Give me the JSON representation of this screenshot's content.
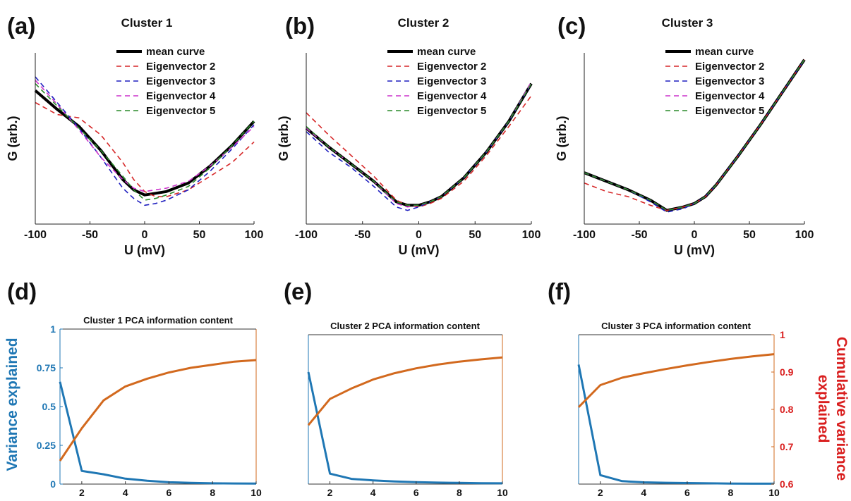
{
  "colors": {
    "mean": "#000000",
    "eig2": "#d62728",
    "eig3": "#1f1fbf",
    "eig4": "#cc33cc",
    "eig5": "#2a8a2a",
    "variance": "#1f77b4",
    "cumulative": "#d2691e",
    "cumulative_axis": "#d91e1e"
  },
  "chart_data": [
    {
      "type": "line",
      "panel": "(a)",
      "title": "Cluster 1",
      "xlabel": "U (mV)",
      "ylabel": "G (arb.)",
      "xlim": [
        -100,
        100
      ],
      "ylim": [
        0,
        1
      ],
      "xticks": [
        -100,
        -50,
        0,
        50,
        100
      ],
      "legend_position": "top-center",
      "x": [
        -100,
        -80,
        -60,
        -40,
        -20,
        -10,
        0,
        10,
        20,
        40,
        60,
        80,
        100
      ],
      "series": [
        {
          "name": "mean curve",
          "style": "solid",
          "values": [
            0.78,
            0.67,
            0.57,
            0.43,
            0.26,
            0.2,
            0.17,
            0.18,
            0.19,
            0.24,
            0.34,
            0.46,
            0.6
          ]
        },
        {
          "name": "Eigenvector 2",
          "style": "dashed",
          "values": [
            0.71,
            0.64,
            0.62,
            0.52,
            0.36,
            0.26,
            0.19,
            0.16,
            0.16,
            0.2,
            0.28,
            0.36,
            0.48
          ]
        },
        {
          "name": "Eigenvector 3",
          "style": "dashed",
          "values": [
            0.86,
            0.71,
            0.56,
            0.39,
            0.21,
            0.15,
            0.11,
            0.12,
            0.14,
            0.2,
            0.31,
            0.44,
            0.58
          ]
        },
        {
          "name": "Eigenvector 4",
          "style": "dashed",
          "values": [
            0.84,
            0.7,
            0.55,
            0.39,
            0.26,
            0.21,
            0.19,
            0.2,
            0.21,
            0.25,
            0.34,
            0.45,
            0.57
          ]
        },
        {
          "name": "Eigenvector 5",
          "style": "dashed",
          "values": [
            0.82,
            0.69,
            0.56,
            0.43,
            0.28,
            0.2,
            0.14,
            0.15,
            0.17,
            0.22,
            0.33,
            0.46,
            0.6
          ]
        }
      ]
    },
    {
      "type": "line",
      "panel": "(b)",
      "title": "Cluster 2",
      "xlabel": "U (mV)",
      "ylabel": "G (arb.)",
      "xlim": [
        -100,
        100
      ],
      "ylim": [
        0,
        1
      ],
      "xticks": [
        -100,
        -50,
        0,
        50,
        100
      ],
      "legend_position": "top-center",
      "x": [
        -100,
        -80,
        -60,
        -40,
        -20,
        -10,
        0,
        10,
        20,
        40,
        60,
        80,
        100
      ],
      "series": [
        {
          "name": "mean curve",
          "style": "solid",
          "values": [
            0.56,
            0.45,
            0.35,
            0.25,
            0.13,
            0.11,
            0.11,
            0.13,
            0.16,
            0.27,
            0.42,
            0.6,
            0.82
          ]
        },
        {
          "name": "Eigenvector 2",
          "style": "dashed",
          "values": [
            0.65,
            0.52,
            0.4,
            0.28,
            0.14,
            0.11,
            0.1,
            0.12,
            0.15,
            0.25,
            0.4,
            0.57,
            0.75
          ]
        },
        {
          "name": "Eigenvector 3",
          "style": "dashed",
          "values": [
            0.54,
            0.42,
            0.33,
            0.22,
            0.1,
            0.08,
            0.1,
            0.13,
            0.16,
            0.27,
            0.42,
            0.6,
            0.82
          ]
        },
        {
          "name": "Eigenvector 4",
          "style": "dashed",
          "values": [
            0.56,
            0.45,
            0.35,
            0.25,
            0.12,
            0.1,
            0.11,
            0.13,
            0.16,
            0.27,
            0.42,
            0.6,
            0.83
          ]
        },
        {
          "name": "Eigenvector 5",
          "style": "dashed",
          "values": [
            0.57,
            0.45,
            0.35,
            0.25,
            0.13,
            0.11,
            0.11,
            0.13,
            0.16,
            0.27,
            0.42,
            0.6,
            0.82
          ]
        }
      ]
    },
    {
      "type": "line",
      "panel": "(c)",
      "title": "Cluster 3",
      "xlabel": "U (mV)",
      "ylabel": "G (arb.)",
      "xlim": [
        -100,
        100
      ],
      "ylim": [
        0,
        1
      ],
      "xticks": [
        -100,
        -50,
        0,
        50,
        100
      ],
      "legend_position": "top-center",
      "x": [
        -100,
        -80,
        -60,
        -40,
        -25,
        -10,
        0,
        10,
        20,
        40,
        60,
        80,
        100
      ],
      "series": [
        {
          "name": "mean curve",
          "style": "solid",
          "values": [
            0.3,
            0.25,
            0.2,
            0.14,
            0.08,
            0.1,
            0.12,
            0.16,
            0.23,
            0.4,
            0.58,
            0.77,
            0.96
          ]
        },
        {
          "name": "Eigenvector 2",
          "style": "dashed",
          "values": [
            0.24,
            0.19,
            0.16,
            0.11,
            0.08,
            0.1,
            0.12,
            0.16,
            0.23,
            0.4,
            0.58,
            0.77,
            0.96
          ]
        },
        {
          "name": "Eigenvector 3",
          "style": "dashed",
          "values": [
            0.3,
            0.25,
            0.2,
            0.13,
            0.07,
            0.09,
            0.12,
            0.16,
            0.23,
            0.4,
            0.58,
            0.77,
            0.96
          ]
        },
        {
          "name": "Eigenvector 4",
          "style": "dashed",
          "values": [
            0.3,
            0.25,
            0.2,
            0.14,
            0.08,
            0.1,
            0.12,
            0.16,
            0.23,
            0.4,
            0.58,
            0.77,
            0.96
          ]
        },
        {
          "name": "Eigenvector 5",
          "style": "dashed",
          "values": [
            0.3,
            0.25,
            0.2,
            0.14,
            0.08,
            0.1,
            0.12,
            0.16,
            0.23,
            0.4,
            0.58,
            0.77,
            0.96
          ]
        }
      ]
    },
    {
      "type": "line",
      "panel": "(d)",
      "title": "Cluster 1 PCA information content",
      "xlabel": "",
      "ylabel": "Variance explained",
      "xlim": [
        1,
        10
      ],
      "xticks": [
        2,
        4,
        6,
        8,
        10
      ],
      "ylim": [
        0,
        1
      ],
      "yticks": [
        "0",
        "0.25",
        "0.5",
        "0.75",
        "1"
      ],
      "y2lim": [
        0,
        1
      ],
      "x": [
        1,
        2,
        3,
        4,
        5,
        6,
        7,
        8,
        9,
        10
      ],
      "series": [
        {
          "role": "variance",
          "values": [
            0.66,
            0.085,
            0.063,
            0.035,
            0.022,
            0.012,
            0.008,
            0.005,
            0.004,
            0.003
          ]
        },
        {
          "role": "cumulative",
          "values": [
            0.15,
            0.36,
            0.54,
            0.63,
            0.68,
            0.72,
            0.75,
            0.77,
            0.79,
            0.8
          ]
        }
      ]
    },
    {
      "type": "line",
      "panel": "(e)",
      "title": "Cluster 2 PCA information content",
      "xlabel": "",
      "ylabel": "",
      "xlim": [
        1,
        10
      ],
      "xticks": [
        2,
        4,
        6,
        8,
        10
      ],
      "ylim": [
        0,
        1
      ],
      "y2lim": [
        0.6,
        1
      ],
      "x": [
        1,
        2,
        3,
        4,
        5,
        6,
        7,
        8,
        9,
        10
      ],
      "series": [
        {
          "role": "variance",
          "values": [
            0.75,
            0.07,
            0.035,
            0.025,
            0.018,
            0.013,
            0.01,
            0.008,
            0.006,
            0.005
          ]
        },
        {
          "role": "cumulative",
          "values": [
            0.758,
            0.828,
            0.856,
            0.88,
            0.897,
            0.91,
            0.92,
            0.928,
            0.934,
            0.939
          ]
        }
      ]
    },
    {
      "type": "line",
      "panel": "(f)",
      "title": "Cluster 3 PCA information content",
      "xlabel": "",
      "ylabel": "",
      "y2label": "Cumulative variance explained",
      "xlim": [
        1,
        10
      ],
      "xticks": [
        2,
        4,
        6,
        8,
        10
      ],
      "ylim": [
        0,
        1
      ],
      "y2lim": [
        0.6,
        1
      ],
      "y2ticks": [
        "0.6",
        "0.7",
        "0.8",
        "0.9",
        "1"
      ],
      "x": [
        1,
        2,
        3,
        4,
        5,
        6,
        7,
        8,
        9,
        10
      ],
      "series": [
        {
          "role": "variance",
          "values": [
            0.8,
            0.06,
            0.02,
            0.012,
            0.009,
            0.007,
            0.005,
            0.004,
            0.003,
            0.003
          ]
        },
        {
          "role": "cumulative",
          "values": [
            0.806,
            0.865,
            0.885,
            0.897,
            0.908,
            0.918,
            0.927,
            0.935,
            0.942,
            0.948
          ]
        }
      ]
    }
  ]
}
